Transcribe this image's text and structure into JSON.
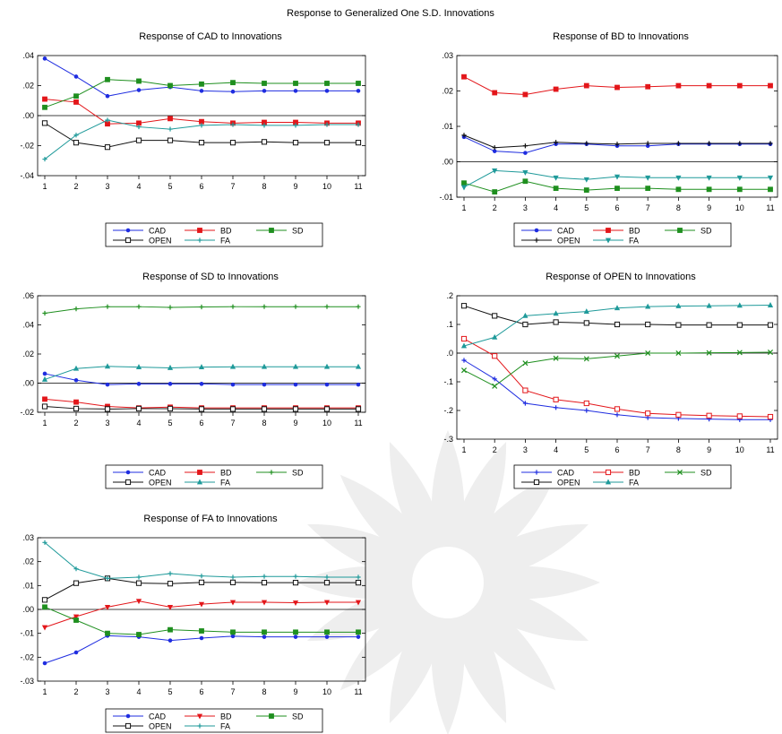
{
  "main_title": "Response to Generalized One S.D. Innovations",
  "colors": {
    "CAD": "#1f2de0",
    "BD": "#e3161a",
    "SD": "#1f8f1f",
    "OPEN": "#111111",
    "FA": "#1f9a9a"
  },
  "chart_data": [
    {
      "type": "line",
      "title": "Response of CAD to Innovations",
      "x": [
        1,
        2,
        3,
        4,
        5,
        6,
        7,
        8,
        9,
        10,
        11
      ],
      "xticks": [
        "1",
        "2",
        "3",
        "4",
        "5",
        "6",
        "7",
        "8",
        "9",
        "10",
        "11"
      ],
      "ylim": [
        -0.04,
        0.04
      ],
      "yticks": [
        -0.04,
        -0.02,
        0.0,
        0.02,
        0.04
      ],
      "yticklabels": [
        "-.04",
        "-.02",
        ".00",
        ".02",
        ".04"
      ],
      "zero_line": true,
      "series": [
        {
          "name": "CAD",
          "marker": "dot",
          "values": [
            0.038,
            0.026,
            0.013,
            0.017,
            0.019,
            0.0165,
            0.016,
            0.0165,
            0.0165,
            0.0165,
            0.0165
          ]
        },
        {
          "name": "BD",
          "marker": "square-filled",
          "values": [
            0.011,
            0.009,
            -0.0055,
            -0.005,
            -0.002,
            -0.004,
            -0.005,
            -0.0045,
            -0.0045,
            -0.005,
            -0.005
          ]
        },
        {
          "name": "SD",
          "marker": "square-filled",
          "values": [
            0.0055,
            0.013,
            0.024,
            0.023,
            0.02,
            0.021,
            0.022,
            0.0215,
            0.0215,
            0.0215,
            0.0215
          ]
        },
        {
          "name": "OPEN",
          "marker": "square-open",
          "values": [
            -0.005,
            -0.018,
            -0.021,
            -0.0165,
            -0.0165,
            -0.018,
            -0.018,
            -0.0175,
            -0.018,
            -0.018,
            -0.018
          ]
        },
        {
          "name": "FA",
          "marker": "plus",
          "values": [
            -0.029,
            -0.013,
            -0.003,
            -0.0075,
            -0.009,
            -0.0065,
            -0.006,
            -0.0065,
            -0.0065,
            -0.006,
            -0.006
          ]
        }
      ]
    },
    {
      "type": "line",
      "title": "Response of BD to Innovations",
      "x": [
        1,
        2,
        3,
        4,
        5,
        6,
        7,
        8,
        9,
        10,
        11
      ],
      "xticks": [
        "1",
        "2",
        "3",
        "4",
        "5",
        "6",
        "7",
        "8",
        "9",
        "10",
        "11"
      ],
      "ylim": [
        -0.01,
        0.03
      ],
      "yticks": [
        -0.01,
        0.0,
        0.01,
        0.02,
        0.03
      ],
      "yticklabels": [
        "-.01",
        ".00",
        ".01",
        ".02",
        ".03"
      ],
      "zero_line": true,
      "series": [
        {
          "name": "CAD",
          "marker": "dot",
          "values": [
            0.007,
            0.003,
            0.0025,
            0.005,
            0.005,
            0.0045,
            0.0045,
            0.005,
            0.005,
            0.005,
            0.005
          ]
        },
        {
          "name": "BD",
          "marker": "square-filled",
          "values": [
            0.024,
            0.0195,
            0.019,
            0.0205,
            0.0215,
            0.021,
            0.0212,
            0.0215,
            0.0215,
            0.0215,
            0.0215
          ]
        },
        {
          "name": "SD",
          "marker": "square-filled",
          "values": [
            -0.006,
            -0.0085,
            -0.0055,
            -0.0075,
            -0.008,
            -0.0075,
            -0.0075,
            -0.0078,
            -0.0078,
            -0.0078,
            -0.0078
          ]
        },
        {
          "name": "OPEN",
          "marker": "plus",
          "values": [
            0.0075,
            0.004,
            0.0045,
            0.0055,
            0.0052,
            0.005,
            0.0052,
            0.0052,
            0.0052,
            0.0052,
            0.0052
          ]
        },
        {
          "name": "FA",
          "marker": "triangle-down",
          "values": [
            -0.0072,
            -0.0025,
            -0.003,
            -0.0045,
            -0.005,
            -0.0042,
            -0.0045,
            -0.0045,
            -0.0045,
            -0.0045,
            -0.0045
          ]
        }
      ]
    },
    {
      "type": "line",
      "title": "Response of SD to Innovations",
      "x": [
        1,
        2,
        3,
        4,
        5,
        6,
        7,
        8,
        9,
        10,
        11
      ],
      "xticks": [
        "1",
        "2",
        "3",
        "4",
        "5",
        "6",
        "7",
        "8",
        "9",
        "10",
        "11"
      ],
      "ylim": [
        -0.02,
        0.06
      ],
      "yticks": [
        -0.02,
        0.0,
        0.02,
        0.04,
        0.06
      ],
      "yticklabels": [
        "-.02",
        ".00",
        ".02",
        ".04",
        ".06"
      ],
      "zero_line": true,
      "series": [
        {
          "name": "CAD",
          "marker": "dot",
          "values": [
            0.0065,
            0.002,
            -0.001,
            -0.0005,
            -0.0005,
            -0.0005,
            -0.001,
            -0.001,
            -0.001,
            -0.001,
            -0.001
          ]
        },
        {
          "name": "BD",
          "marker": "square-filled",
          "values": [
            -0.011,
            -0.013,
            -0.016,
            -0.017,
            -0.0165,
            -0.017,
            -0.017,
            -0.017,
            -0.017,
            -0.017,
            -0.017
          ]
        },
        {
          "name": "SD",
          "marker": "plus",
          "values": [
            0.048,
            0.051,
            0.0525,
            0.0525,
            0.052,
            0.0523,
            0.0525,
            0.0525,
            0.0525,
            0.0525,
            0.0525
          ]
        },
        {
          "name": "OPEN",
          "marker": "square-open",
          "values": [
            -0.016,
            -0.0175,
            -0.0178,
            -0.0175,
            -0.0175,
            -0.0178,
            -0.0178,
            -0.0178,
            -0.0178,
            -0.0178,
            -0.0178
          ]
        },
        {
          "name": "FA",
          "marker": "triangle-up",
          "values": [
            0.0025,
            0.01,
            0.0115,
            0.011,
            0.0105,
            0.011,
            0.0112,
            0.0112,
            0.0112,
            0.0112,
            0.0112
          ]
        }
      ]
    },
    {
      "type": "line",
      "title": "Response of OPEN to Innovations",
      "x": [
        1,
        2,
        3,
        4,
        5,
        6,
        7,
        8,
        9,
        10,
        11
      ],
      "xticks": [
        "1",
        "2",
        "3",
        "4",
        "5",
        "6",
        "7",
        "8",
        "9",
        "10",
        "11"
      ],
      "ylim": [
        -0.3,
        0.2
      ],
      "yticks": [
        -0.3,
        -0.2,
        -0.1,
        0.0,
        0.1,
        0.2
      ],
      "yticklabels": [
        "-.3",
        "-.2",
        "-.1",
        ".0",
        ".1",
        ".2"
      ],
      "zero_line": true,
      "series": [
        {
          "name": "CAD",
          "marker": "plus",
          "values": [
            -0.025,
            -0.09,
            -0.175,
            -0.19,
            -0.2,
            -0.215,
            -0.225,
            -0.228,
            -0.23,
            -0.232,
            -0.232
          ]
        },
        {
          "name": "BD",
          "marker": "square-open",
          "values": [
            0.05,
            -0.01,
            -0.13,
            -0.162,
            -0.175,
            -0.195,
            -0.21,
            -0.215,
            -0.218,
            -0.22,
            -0.222
          ]
        },
        {
          "name": "SD",
          "marker": "x",
          "values": [
            -0.06,
            -0.115,
            -0.035,
            -0.018,
            -0.02,
            -0.01,
            0.0,
            0.0,
            0.001,
            0.002,
            0.003
          ]
        },
        {
          "name": "OPEN",
          "marker": "square-open",
          "values": [
            0.165,
            0.13,
            0.1,
            0.108,
            0.105,
            0.1,
            0.1,
            0.098,
            0.098,
            0.098,
            0.098
          ]
        },
        {
          "name": "FA",
          "marker": "triangle-up",
          "values": [
            0.025,
            0.055,
            0.13,
            0.138,
            0.145,
            0.157,
            0.162,
            0.164,
            0.165,
            0.166,
            0.167
          ]
        }
      ]
    },
    {
      "type": "line",
      "title": "Response of FA to Innovations",
      "x": [
        1,
        2,
        3,
        4,
        5,
        6,
        7,
        8,
        9,
        10,
        11
      ],
      "xticks": [
        "1",
        "2",
        "3",
        "4",
        "5",
        "6",
        "7",
        "8",
        "9",
        "10",
        "11"
      ],
      "ylim": [
        -0.03,
        0.03
      ],
      "yticks": [
        -0.03,
        -0.02,
        -0.01,
        0.0,
        0.01,
        0.02,
        0.03
      ],
      "yticklabels": [
        "-.03",
        "-.02",
        "-.01",
        ".00",
        ".01",
        ".02",
        ".03"
      ],
      "zero_line": true,
      "series": [
        {
          "name": "CAD",
          "marker": "dot",
          "values": [
            -0.0225,
            -0.018,
            -0.011,
            -0.0115,
            -0.013,
            -0.012,
            -0.0112,
            -0.0115,
            -0.0115,
            -0.0115,
            -0.0115
          ]
        },
        {
          "name": "BD",
          "marker": "triangle-down",
          "values": [
            -0.0075,
            -0.003,
            0.001,
            0.0035,
            0.001,
            0.0022,
            0.003,
            0.003,
            0.0028,
            0.003,
            0.003
          ]
        },
        {
          "name": "SD",
          "marker": "square-filled",
          "values": [
            0.001,
            -0.0045,
            -0.01,
            -0.0105,
            -0.0085,
            -0.009,
            -0.0095,
            -0.0095,
            -0.0095,
            -0.0095,
            -0.0095
          ]
        },
        {
          "name": "OPEN",
          "marker": "square-open",
          "values": [
            0.004,
            0.011,
            0.013,
            0.011,
            0.0108,
            0.0113,
            0.0113,
            0.0112,
            0.0112,
            0.0112,
            0.0112
          ]
        },
        {
          "name": "FA",
          "marker": "plus",
          "values": [
            0.028,
            0.017,
            0.013,
            0.0135,
            0.015,
            0.014,
            0.0135,
            0.0138,
            0.0138,
            0.0135,
            0.0135
          ]
        }
      ]
    }
  ]
}
